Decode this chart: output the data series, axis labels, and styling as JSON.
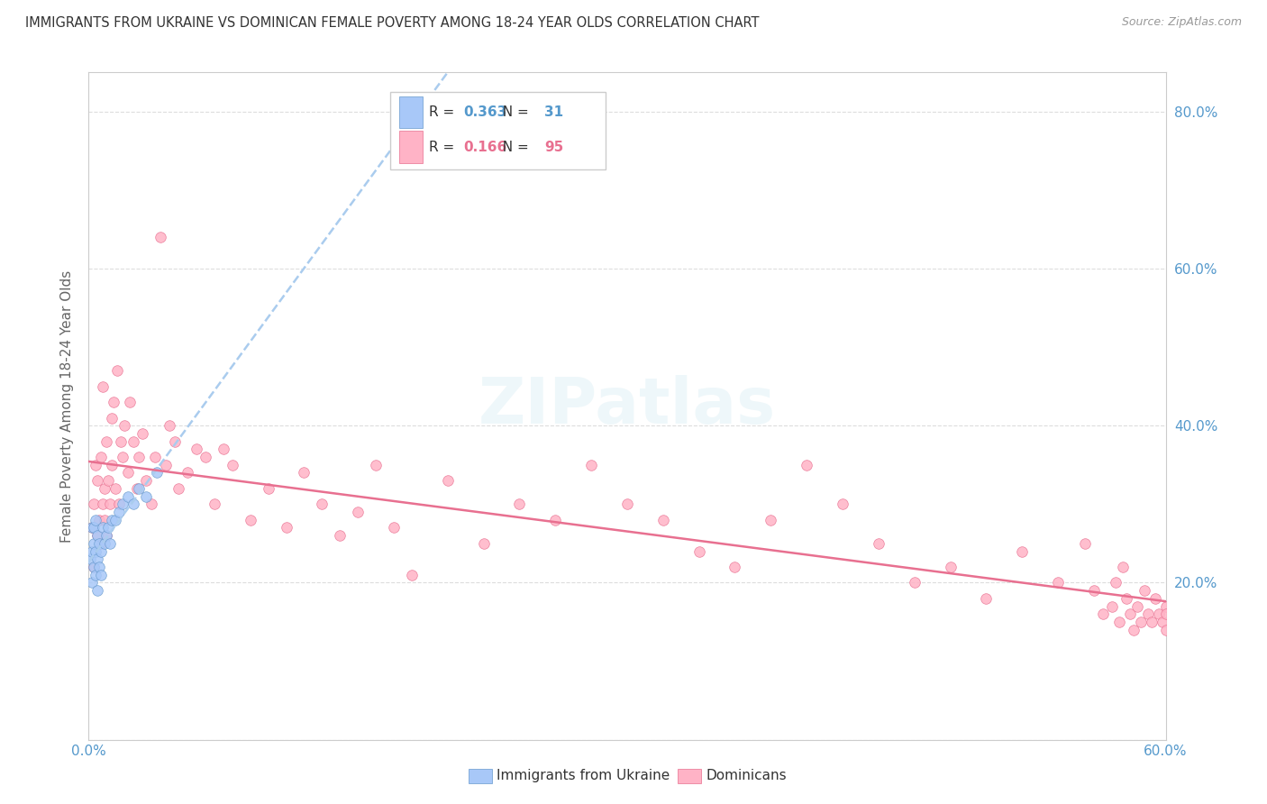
{
  "title": "IMMIGRANTS FROM UKRAINE VS DOMINICAN FEMALE POVERTY AMONG 18-24 YEAR OLDS CORRELATION CHART",
  "source": "Source: ZipAtlas.com",
  "ylabel": "Female Poverty Among 18-24 Year Olds",
  "xlim": [
    0.0,
    0.6
  ],
  "ylim": [
    0.0,
    0.85
  ],
  "ukraine_R": 0.363,
  "ukraine_N": 31,
  "dominican_R": 0.166,
  "dominican_N": 95,
  "ukraine_color": "#a8c8f8",
  "ukraine_edge": "#6699cc",
  "dominican_color": "#ffb3c6",
  "dominican_edge": "#e87090",
  "trend_dashed_color": "#aaccee",
  "trend_solid_color": "#e87090",
  "watermark": "ZIPatlas",
  "background_color": "#ffffff",
  "grid_color": "#dddddd",
  "title_color": "#333333",
  "axis_label_color": "#5599cc",
  "ukraine_x": [
    0.001,
    0.002,
    0.002,
    0.002,
    0.003,
    0.003,
    0.003,
    0.004,
    0.004,
    0.004,
    0.005,
    0.005,
    0.005,
    0.006,
    0.006,
    0.007,
    0.007,
    0.008,
    0.009,
    0.01,
    0.011,
    0.012,
    0.013,
    0.015,
    0.017,
    0.019,
    0.022,
    0.025,
    0.028,
    0.032,
    0.038
  ],
  "ukraine_y": [
    0.23,
    0.2,
    0.24,
    0.27,
    0.22,
    0.25,
    0.27,
    0.21,
    0.24,
    0.28,
    0.19,
    0.23,
    0.26,
    0.22,
    0.25,
    0.21,
    0.24,
    0.27,
    0.25,
    0.26,
    0.27,
    0.25,
    0.28,
    0.28,
    0.29,
    0.3,
    0.31,
    0.3,
    0.32,
    0.31,
    0.34
  ],
  "dominican_x": [
    0.002,
    0.003,
    0.003,
    0.004,
    0.005,
    0.005,
    0.006,
    0.007,
    0.007,
    0.008,
    0.008,
    0.009,
    0.009,
    0.01,
    0.01,
    0.011,
    0.012,
    0.013,
    0.013,
    0.014,
    0.015,
    0.016,
    0.017,
    0.018,
    0.019,
    0.02,
    0.022,
    0.023,
    0.025,
    0.027,
    0.028,
    0.03,
    0.032,
    0.035,
    0.037,
    0.04,
    0.043,
    0.045,
    0.048,
    0.05,
    0.055,
    0.06,
    0.065,
    0.07,
    0.075,
    0.08,
    0.09,
    0.1,
    0.11,
    0.12,
    0.13,
    0.14,
    0.15,
    0.16,
    0.17,
    0.18,
    0.2,
    0.22,
    0.24,
    0.26,
    0.28,
    0.3,
    0.32,
    0.34,
    0.36,
    0.38,
    0.4,
    0.42,
    0.44,
    0.46,
    0.48,
    0.5,
    0.52,
    0.54,
    0.555,
    0.56,
    0.565,
    0.57,
    0.572,
    0.574,
    0.576,
    0.578,
    0.58,
    0.582,
    0.584,
    0.586,
    0.588,
    0.59,
    0.592,
    0.594,
    0.596,
    0.598,
    0.6,
    0.6,
    0.6
  ],
  "dominican_y": [
    0.27,
    0.3,
    0.22,
    0.35,
    0.26,
    0.33,
    0.28,
    0.25,
    0.36,
    0.3,
    0.45,
    0.28,
    0.32,
    0.26,
    0.38,
    0.33,
    0.3,
    0.41,
    0.35,
    0.43,
    0.32,
    0.47,
    0.3,
    0.38,
    0.36,
    0.4,
    0.34,
    0.43,
    0.38,
    0.32,
    0.36,
    0.39,
    0.33,
    0.3,
    0.36,
    0.64,
    0.35,
    0.4,
    0.38,
    0.32,
    0.34,
    0.37,
    0.36,
    0.3,
    0.37,
    0.35,
    0.28,
    0.32,
    0.27,
    0.34,
    0.3,
    0.26,
    0.29,
    0.35,
    0.27,
    0.21,
    0.33,
    0.25,
    0.3,
    0.28,
    0.35,
    0.3,
    0.28,
    0.24,
    0.22,
    0.28,
    0.35,
    0.3,
    0.25,
    0.2,
    0.22,
    0.18,
    0.24,
    0.2,
    0.25,
    0.19,
    0.16,
    0.17,
    0.2,
    0.15,
    0.22,
    0.18,
    0.16,
    0.14,
    0.17,
    0.15,
    0.19,
    0.16,
    0.15,
    0.18,
    0.16,
    0.15,
    0.14,
    0.17,
    0.16
  ]
}
